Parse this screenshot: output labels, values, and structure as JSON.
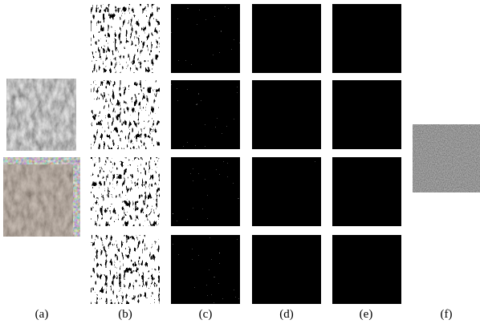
{
  "figure": {
    "labels": [
      "(a)",
      "(b)",
      "(c)",
      "(d)",
      "(e)",
      "(f)"
    ]
  }
}
